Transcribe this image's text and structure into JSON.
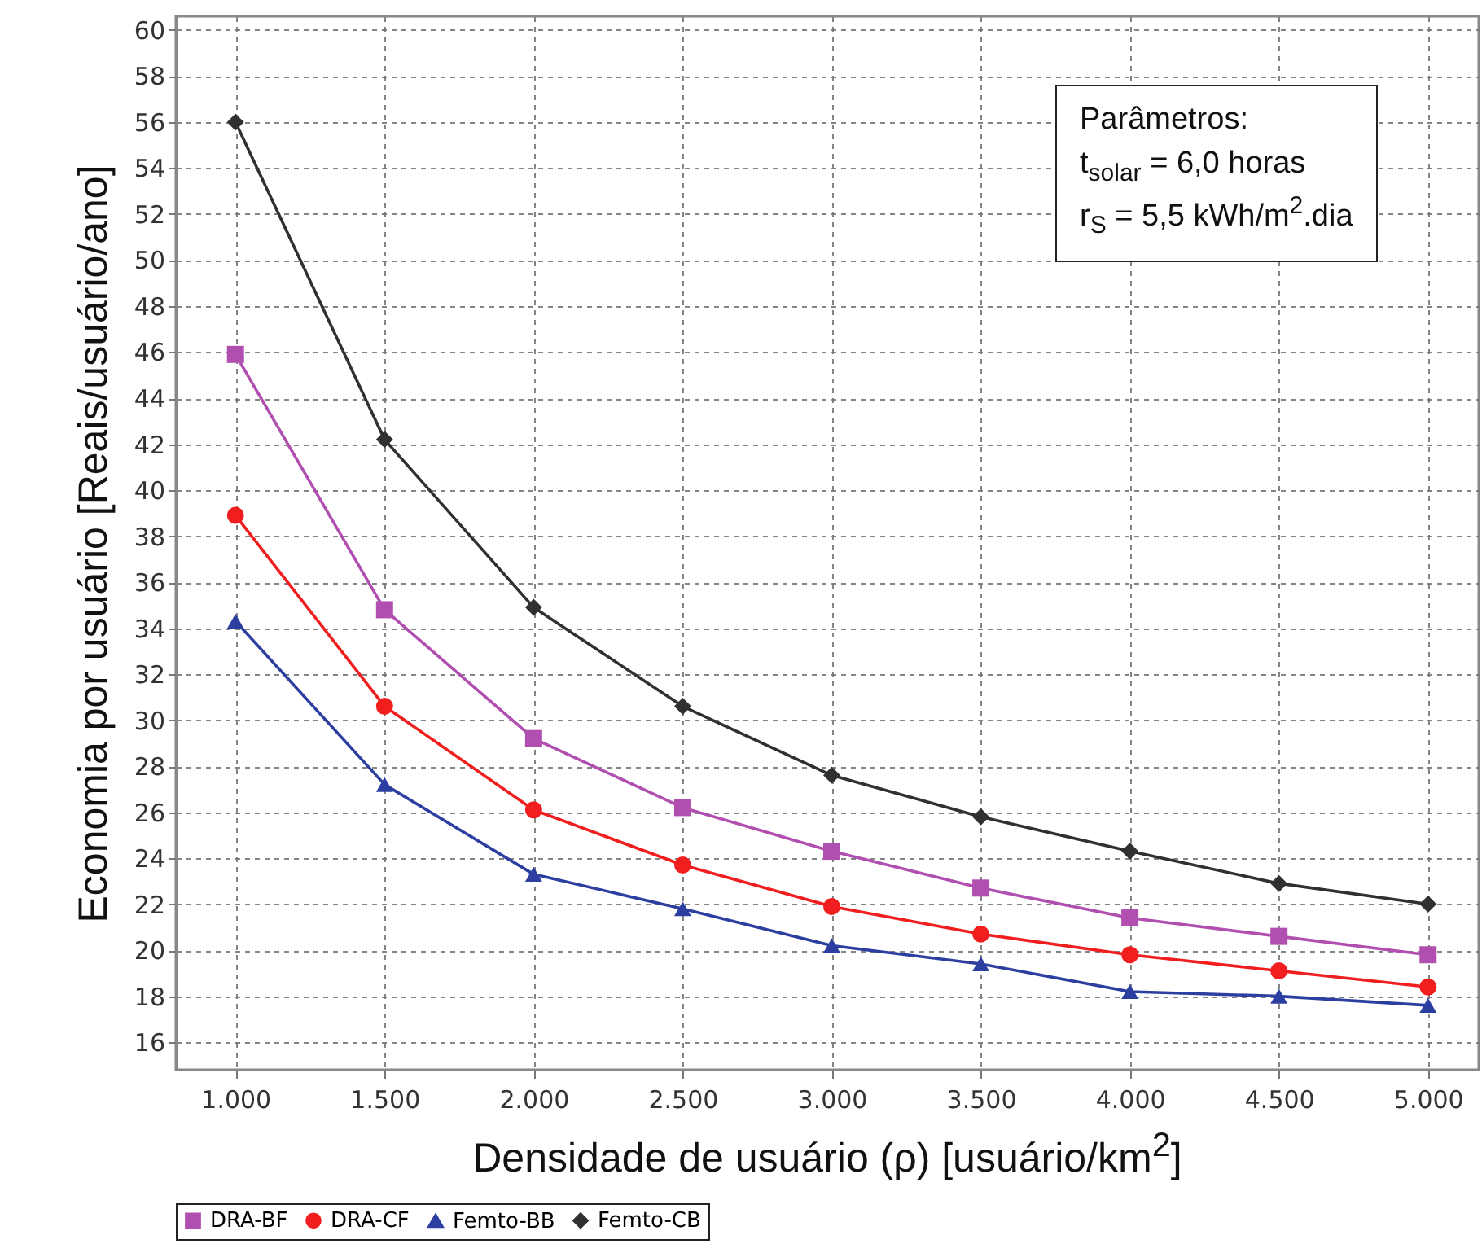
{
  "chart_data": {
    "type": "line",
    "xlabel": "Densidade de usuário (ρ) [usuário/km$^{2}$]",
    "ylabel": "Economia por usuário [Reais/usuário/ano]",
    "x": [
      1000,
      1500,
      2000,
      2500,
      3000,
      3500,
      4000,
      4500,
      5000
    ],
    "series": [
      {
        "name": "DRA-BF",
        "color": "#b04fb0",
        "marker": "square",
        "values": [
          45.9,
          34.8,
          29.2,
          26.2,
          24.3,
          22.7,
          21.4,
          20.6,
          19.8
        ]
      },
      {
        "name": "DRA-CF",
        "color": "#f01e1e",
        "marker": "circle",
        "values": [
          38.9,
          30.6,
          26.1,
          23.7,
          21.9,
          20.7,
          19.8,
          19.1,
          18.4
        ]
      },
      {
        "name": "Femto-BB",
        "color": "#2c3fa0",
        "marker": "triangle",
        "values": [
          34.3,
          27.2,
          23.3,
          21.8,
          20.2,
          19.4,
          18.2,
          18.0,
          17.6
        ]
      },
      {
        "name": "Femto-CB",
        "color": "#303030",
        "marker": "diamond",
        "values": [
          56.0,
          42.2,
          34.9,
          30.6,
          27.6,
          25.8,
          24.3,
          22.9,
          22.0
        ]
      }
    ],
    "xlim": [
      800,
      5170
    ],
    "xticks": [
      {
        "value": 1000,
        "label": "1.000"
      },
      {
        "value": 1500,
        "label": "1.500"
      },
      {
        "value": 2000,
        "label": "2.000"
      },
      {
        "value": 2500,
        "label": "2.500"
      },
      {
        "value": 3000,
        "label": "3.000"
      },
      {
        "value": 3500,
        "label": "3.500"
      },
      {
        "value": 4000,
        "label": "4.000"
      },
      {
        "value": 4500,
        "label": "4.500"
      },
      {
        "value": 5000,
        "label": "5.000"
      }
    ],
    "ylim": [
      14.8,
      60.6
    ],
    "yticks": [
      16,
      18,
      20,
      22,
      24,
      26,
      28,
      30,
      32,
      34,
      36,
      38,
      40,
      42,
      44,
      46,
      48,
      50,
      52,
      54,
      56,
      58,
      60
    ],
    "grid": true,
    "legend": "bottom",
    "line_style": "solid",
    "annotations": [
      "Parâmetros:",
      "t$_{solar}$ = 6,0 horas",
      "r$_{S}$ = 5,5 kWh/m$^{2}$.dia"
    ]
  }
}
